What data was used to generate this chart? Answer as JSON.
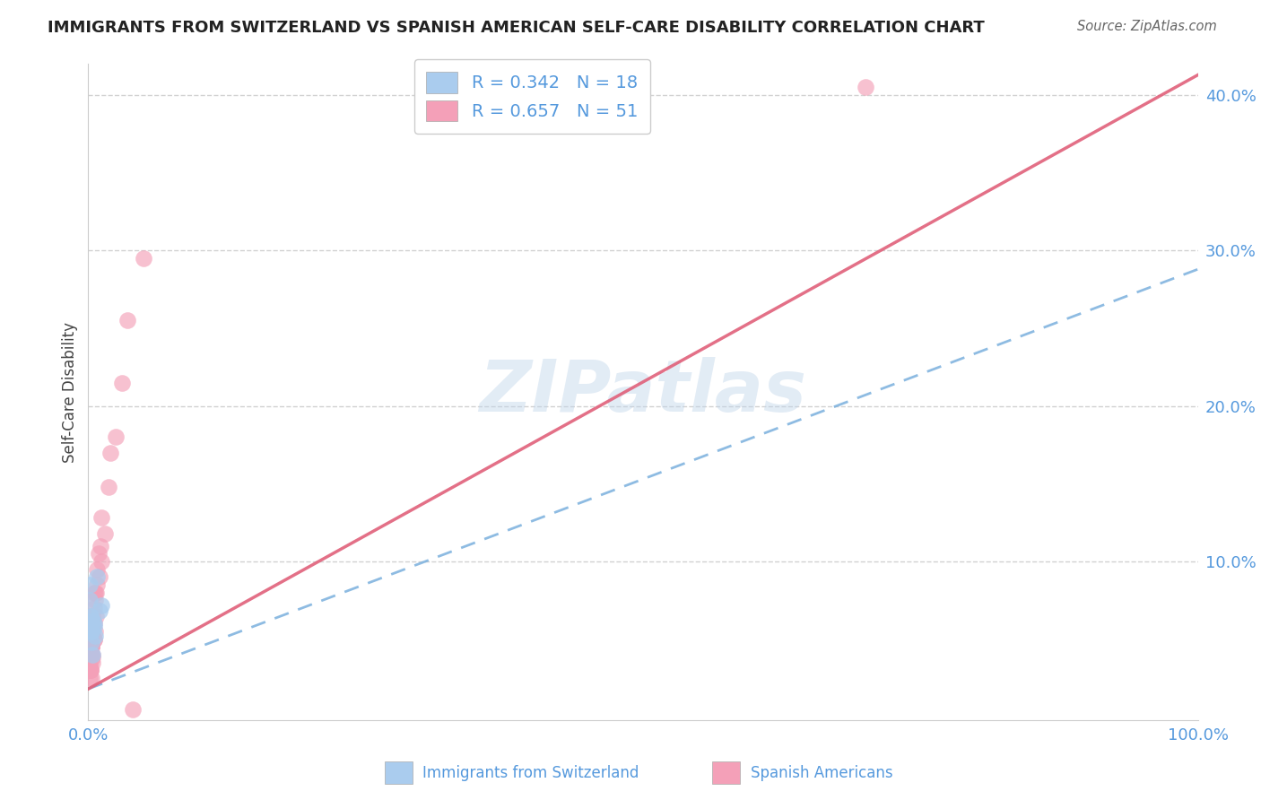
{
  "title": "IMMIGRANTS FROM SWITZERLAND VS SPANISH AMERICAN SELF-CARE DISABILITY CORRELATION CHART",
  "source": "Source: ZipAtlas.com",
  "ylabel": "Self-Care Disability",
  "legend_label1": "Immigrants from Switzerland",
  "legend_label2": "Spanish Americans",
  "R1": 0.342,
  "N1": 18,
  "R2": 0.657,
  "N2": 51,
  "color_blue_scatter": "#aaccee",
  "color_blue_line": "#7ab0dd",
  "color_pink_scatter": "#f4a0b8",
  "color_pink_line": "#e0607a",
  "color_axis_labels": "#5599dd",
  "color_title": "#222222",
  "color_source": "#666666",
  "background_color": "#ffffff",
  "watermark": "ZIPatlas",
  "xlim": [
    0.0,
    1.0
  ],
  "ylim": [
    -0.002,
    0.42
  ],
  "x_ticks": [
    0.0,
    0.25,
    0.5,
    0.75,
    1.0
  ],
  "x_tick_labels": [
    "0.0%",
    "",
    "",
    "",
    "100.0%"
  ],
  "y_ticks": [
    0.1,
    0.2,
    0.3,
    0.4
  ],
  "y_tick_labels": [
    "10.0%",
    "20.0%",
    "30.0%",
    "40.0%"
  ],
  "swiss_slope": 0.27,
  "swiss_intercept": 0.018,
  "spanish_slope": 0.395,
  "spanish_intercept": 0.018,
  "swiss_x": [
    0.001,
    0.002,
    0.003,
    0.001,
    0.005,
    0.004,
    0.003,
    0.002,
    0.001,
    0.006,
    0.003,
    0.002,
    0.004,
    0.005,
    0.003,
    0.012,
    0.01,
    0.008
  ],
  "swiss_y": [
    0.085,
    0.065,
    0.055,
    0.075,
    0.058,
    0.062,
    0.048,
    0.06,
    0.055,
    0.052,
    0.055,
    0.065,
    0.04,
    0.06,
    0.06,
    0.072,
    0.068,
    0.09
  ],
  "spanish_x": [
    0.001,
    0.002,
    0.003,
    0.004,
    0.001,
    0.002,
    0.003,
    0.001,
    0.002,
    0.001,
    0.003,
    0.004,
    0.002,
    0.001,
    0.003,
    0.002,
    0.001,
    0.004,
    0.005,
    0.003,
    0.002,
    0.006,
    0.005,
    0.007,
    0.004,
    0.003,
    0.005,
    0.006,
    0.004,
    0.003,
    0.002,
    0.005,
    0.007,
    0.008,
    0.006,
    0.01,
    0.008,
    0.012,
    0.009,
    0.011,
    0.015,
    0.012,
    0.018,
    0.02,
    0.025,
    0.03,
    0.035,
    0.05,
    0.7,
    0.005,
    0.04
  ],
  "spanish_y": [
    0.03,
    0.04,
    0.045,
    0.035,
    0.038,
    0.05,
    0.025,
    0.042,
    0.03,
    0.033,
    0.045,
    0.04,
    0.03,
    0.025,
    0.045,
    0.03,
    0.035,
    0.038,
    0.05,
    0.04,
    0.042,
    0.055,
    0.05,
    0.065,
    0.06,
    0.055,
    0.07,
    0.075,
    0.065,
    0.055,
    0.045,
    0.08,
    0.08,
    0.085,
    0.08,
    0.09,
    0.095,
    0.1,
    0.105,
    0.11,
    0.118,
    0.128,
    0.148,
    0.17,
    0.18,
    0.215,
    0.255,
    0.295,
    0.405,
    0.06,
    0.005
  ]
}
